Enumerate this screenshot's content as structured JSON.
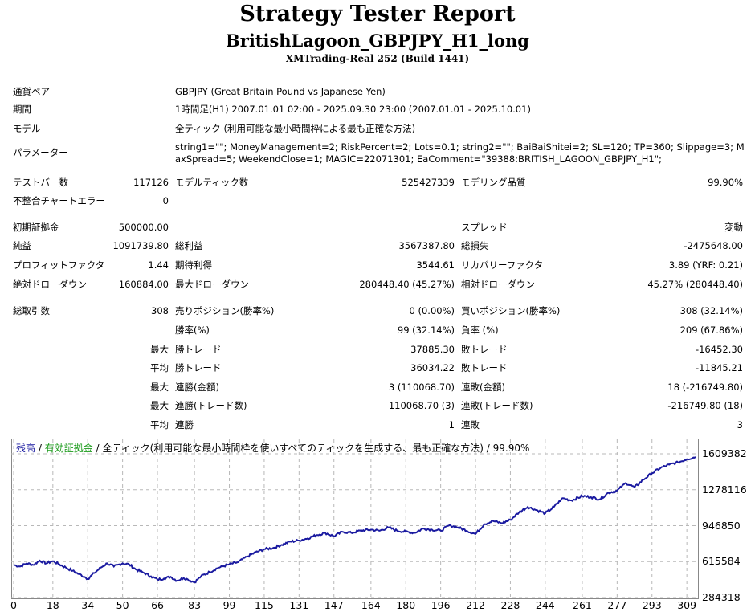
{
  "header": {
    "title": "Strategy Tester Report",
    "subtitle": "BritishLagoon_GBPJPY_H1_long",
    "build": "XMTrading-Real 252 (Build 1441)"
  },
  "info": {
    "pair_label": "通貨ペア",
    "pair_value": "GBPJPY (Great Britain Pound vs Japanese Yen)",
    "period_label": "期間",
    "period_value": "1時間足(H1) 2007.01.01 02:00 - 2025.09.30 23:00 (2007.01.01 - 2025.10.01)",
    "model_label": "モデル",
    "model_value": "全ティック (利用可能な最小時間枠による最も正確な方法)",
    "params_label": "パラメーター",
    "params_value": "string1=\"\"; MoneyManagement=2; RiskPercent=2; Lots=0.1; string2=\"\"; BaiBaiShitei=2; SL=120; TP=360; Slippage=3; MaxSpread=5; WeekendClose=1; MAGIC=22071301; EaComment=\"39388:BRITISH_LAGOON_GBPJPY_H1\";"
  },
  "stats": {
    "bars_label": "テストバー数",
    "bars_value": "117126",
    "ticks_label": "モデルティック数",
    "ticks_value": "525427339",
    "quality_label": "モデリング品質",
    "quality_value": "99.90%",
    "errors_label": "不整合チャートエラー",
    "errors_value": "0",
    "deposit_label": "初期証拠金",
    "deposit_value": "500000.00",
    "spread_label": "スプレッド",
    "spread_value": "変動",
    "net_label": "純益",
    "net_value": "1091739.80",
    "gross_profit_label": "総利益",
    "gross_profit_value": "3567387.80",
    "gross_loss_label": "総損失",
    "gross_loss_value": "-2475648.00",
    "pf_label": "プロフィットファクタ",
    "pf_value": "1.44",
    "expected_label": "期待利得",
    "expected_value": "3544.61",
    "recovery_label": "リカバリーファクタ",
    "recovery_value": "3.89 (YRF: 0.21)",
    "abs_dd_label": "絶対ドローダウン",
    "abs_dd_value": "160884.00",
    "max_dd_label": "最大ドローダウン",
    "max_dd_value": "280448.40 (45.27%)",
    "rel_dd_label": "相対ドローダウン",
    "rel_dd_value": "45.27% (280448.40)",
    "trades_label": "総取引数",
    "trades_value": "308",
    "short_label": "売りポジション(勝率%)",
    "short_value": "0 (0.00%)",
    "long_label": "買いポジション(勝率%)",
    "long_value": "308 (32.14%)",
    "winrate_label": "勝率(%)",
    "winrate_value": "99 (32.14%)",
    "lossrate_label": "負率 (%)",
    "lossrate_value": "209 (67.86%)",
    "max_prefix": "最大",
    "avg_prefix": "平均",
    "largest_win_label": "勝トレード",
    "largest_win_value": "37885.30",
    "largest_loss_label": "敗トレード",
    "largest_loss_value": "-16452.30",
    "avg_win_label": "勝トレード",
    "avg_win_value": "36034.22",
    "avg_loss_label": "敗トレード",
    "avg_loss_value": "-11845.21",
    "max_cons_wins_label": "連勝(金額)",
    "max_cons_wins_value": "3 (110068.70)",
    "max_cons_losses_label": "連敗(金額)",
    "max_cons_losses_value": "18 (-216749.80)",
    "max_cons_profit_label": "連勝(トレード数)",
    "max_cons_profit_value": "110068.70 (3)",
    "max_cons_loss_label": "連敗(トレード数)",
    "max_cons_loss_value": "-216749.80 (18)",
    "avg_cons_wins_label": "連勝",
    "avg_cons_wins_value": "1",
    "avg_cons_losses_label": "連敗",
    "avg_cons_losses_value": "3"
  },
  "chart_legend": {
    "balance": "残高",
    "sep1": " / ",
    "equity": "有効証拠金",
    "rest": " / 全ティック(利用可能な最小時間枠を使いすべてのティックを生成する、最も正確な方法) / 99.90%"
  },
  "chart_data": {
    "type": "line",
    "y_ticks": [
      "1609382",
      "1278116",
      "946850",
      "615584",
      "284318"
    ],
    "x_ticks": [
      "0",
      "18",
      "34",
      "50",
      "66",
      "83",
      "99",
      "115",
      "131",
      "147",
      "164",
      "180",
      "196",
      "212",
      "228",
      "244",
      "261",
      "277",
      "293",
      "309"
    ],
    "ylim": [
      284318,
      1609382
    ],
    "xlim": [
      0,
      313
    ],
    "grid": true,
    "line_color": "#1a1aa0",
    "series": [
      {
        "x": [
          0,
          3,
          6,
          9,
          12,
          15,
          18,
          21,
          24,
          27,
          30,
          33,
          34,
          37,
          40,
          43,
          46,
          50,
          53,
          56,
          60,
          63,
          66,
          69,
          72,
          75,
          78,
          80,
          83,
          86,
          90,
          94,
          99,
          103,
          107,
          111,
          115,
          119,
          123,
          127,
          131,
          135,
          139,
          143,
          147,
          151,
          155,
          159,
          164,
          168,
          172,
          176,
          180,
          184,
          188,
          192,
          196,
          200,
          204,
          208,
          212,
          216,
          220,
          224,
          228,
          232,
          236,
          240,
          244,
          248,
          252,
          256,
          261,
          265,
          269,
          273,
          277,
          281,
          285,
          289,
          293,
          297,
          301,
          305,
          309,
          313
        ],
        "values": [
          585000,
          570000,
          600000,
          585000,
          625000,
          600000,
          620000,
          590000,
          560000,
          530000,
          500000,
          470000,
          455000,
          510000,
          560000,
          600000,
          570000,
          600000,
          590000,
          545000,
          510000,
          480000,
          450000,
          460000,
          475000,
          440000,
          465000,
          450000,
          425000,
          480000,
          520000,
          560000,
          590000,
          610000,
          660000,
          700000,
          730000,
          740000,
          770000,
          800000,
          810000,
          830000,
          860000,
          880000,
          850000,
          890000,
          880000,
          900000,
          910000,
          900000,
          930000,
          900000,
          890000,
          880000,
          920000,
          910000,
          900000,
          950000,
          930000,
          900000,
          870000,
          960000,
          990000,
          970000,
          1000000,
          1070000,
          1120000,
          1090000,
          1060000,
          1120000,
          1200000,
          1180000,
          1220000,
          1210000,
          1190000,
          1250000,
          1270000,
          1340000,
          1300000,
          1370000,
          1430000,
          1480000,
          1510000,
          1530000,
          1560000,
          1580000
        ]
      }
    ]
  }
}
